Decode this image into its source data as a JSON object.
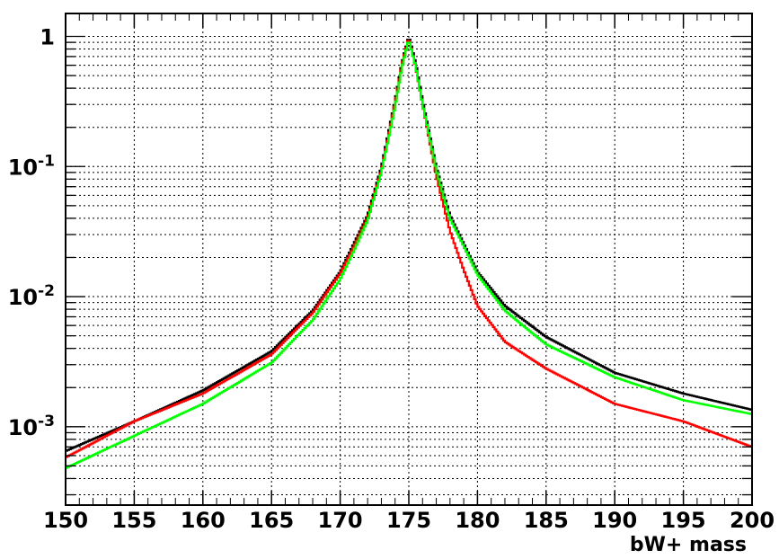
{
  "chart_data": {
    "type": "line",
    "title": "",
    "xlabel": "bW+ mass",
    "ylabel": "",
    "xlim": [
      150,
      200
    ],
    "ylim": [
      0.00025,
      1.5
    ],
    "y_scale": "log",
    "grid": true,
    "grid_style": "dotted",
    "legend": "none",
    "x_tick_labels": [
      "150",
      "155",
      "160",
      "165",
      "170",
      "175",
      "180",
      "185",
      "190",
      "195",
      "200"
    ],
    "y_tick_labels": [
      {
        "value": 0.001,
        "base": "10",
        "exp": "-3"
      },
      {
        "value": 0.01,
        "base": "10",
        "exp": "-2"
      },
      {
        "value": 0.1,
        "base": "10",
        "exp": "-1"
      },
      {
        "value": 1,
        "base": "1",
        "exp": ""
      }
    ],
    "series": [
      {
        "color": "#000000",
        "style": "step",
        "x": [
          150,
          155,
          160,
          165,
          168,
          170,
          172,
          173,
          174,
          174.5,
          175,
          175.5,
          176,
          177,
          178,
          180,
          182,
          185,
          190,
          195,
          200
        ],
        "y": [
          0.00065,
          0.0011,
          0.0019,
          0.0038,
          0.0078,
          0.0155,
          0.042,
          0.098,
          0.32,
          0.62,
          1.0,
          0.62,
          0.32,
          0.098,
          0.042,
          0.0155,
          0.0085,
          0.0049,
          0.0026,
          0.0018,
          0.00135
        ]
      },
      {
        "color": "#ff0000",
        "style": "step",
        "x": [
          150,
          155,
          160,
          165,
          168,
          170,
          172,
          173,
          174,
          174.5,
          175,
          175.5,
          176,
          177,
          178,
          179,
          180,
          182,
          185,
          190,
          195,
          200
        ],
        "y": [
          0.00058,
          0.0011,
          0.0018,
          0.0036,
          0.0075,
          0.015,
          0.04,
          0.093,
          0.31,
          0.6,
          0.98,
          0.58,
          0.3,
          0.085,
          0.032,
          0.016,
          0.0085,
          0.0045,
          0.0028,
          0.0015,
          0.0011,
          0.0007
        ]
      },
      {
        "color": "#00ff00",
        "style": "step",
        "x": [
          150,
          155,
          160,
          165,
          168,
          170,
          172,
          173,
          174,
          174.5,
          175,
          175.5,
          176,
          177,
          178,
          180,
          182,
          185,
          190,
          195,
          200
        ],
        "y": [
          0.00048,
          0.00085,
          0.0015,
          0.0031,
          0.0066,
          0.0135,
          0.038,
          0.09,
          0.29,
          0.57,
          0.95,
          0.59,
          0.3,
          0.094,
          0.04,
          0.0148,
          0.0078,
          0.0043,
          0.0024,
          0.0016,
          0.00125
        ]
      }
    ]
  }
}
